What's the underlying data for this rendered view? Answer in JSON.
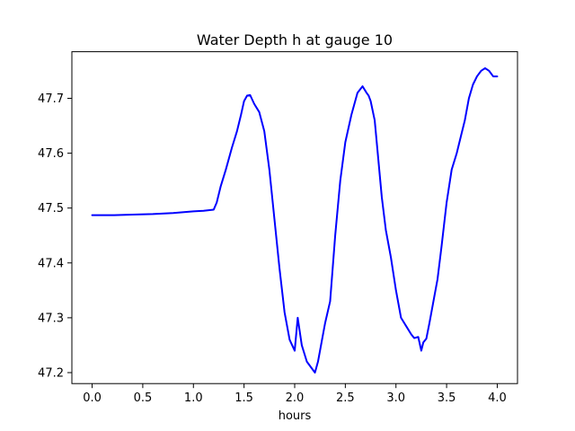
{
  "chart_data": {
    "type": "line",
    "title": "Water Depth h at gauge 10",
    "xlabel": "hours",
    "ylabel": "",
    "xlim": [
      -0.2,
      4.2
    ],
    "ylim": [
      47.18,
      47.785
    ],
    "xticks": [
      0.0,
      0.5,
      1.0,
      1.5,
      2.0,
      2.5,
      3.0,
      3.5,
      4.0
    ],
    "xtick_labels": [
      "0.0",
      "0.5",
      "1.0",
      "1.5",
      "2.0",
      "2.5",
      "3.0",
      "3.5",
      "4.0"
    ],
    "yticks": [
      47.2,
      47.3,
      47.4,
      47.5,
      47.6,
      47.7
    ],
    "ytick_labels": [
      "47.2",
      "47.3",
      "47.4",
      "47.5",
      "47.6",
      "47.7"
    ],
    "grid": false,
    "series": [
      {
        "color": "#0000ff",
        "x": [
          0.0,
          0.2,
          0.4,
          0.6,
          0.8,
          1.0,
          1.1,
          1.2,
          1.23,
          1.27,
          1.32,
          1.38,
          1.43,
          1.47,
          1.5,
          1.53,
          1.56,
          1.6,
          1.65,
          1.7,
          1.75,
          1.8,
          1.85,
          1.9,
          1.95,
          2.0,
          2.03,
          2.07,
          2.12,
          2.16,
          2.2,
          2.23,
          2.27,
          2.3,
          2.35,
          2.4,
          2.45,
          2.5,
          2.56,
          2.62,
          2.67,
          2.71,
          2.73,
          2.75,
          2.79,
          2.82,
          2.86,
          2.9,
          2.95,
          3.0,
          3.05,
          3.1,
          3.15,
          3.18,
          3.22,
          3.25,
          3.27,
          3.3,
          3.33,
          3.35,
          3.38,
          3.41,
          3.45,
          3.5,
          3.55,
          3.6,
          3.64,
          3.68,
          3.72,
          3.76,
          3.8,
          3.84,
          3.88,
          3.92,
          3.96,
          4.0
        ],
        "y": [
          47.487,
          47.487,
          47.488,
          47.489,
          47.491,
          47.494,
          47.495,
          47.497,
          47.51,
          47.54,
          47.57,
          47.61,
          47.64,
          47.67,
          47.695,
          47.705,
          47.706,
          47.69,
          47.675,
          47.64,
          47.57,
          47.48,
          47.39,
          47.31,
          47.26,
          47.24,
          47.3,
          47.25,
          47.22,
          47.21,
          47.2,
          47.22,
          47.26,
          47.29,
          47.33,
          47.45,
          47.55,
          47.62,
          47.67,
          47.71,
          47.722,
          47.71,
          47.705,
          47.695,
          47.66,
          47.6,
          47.52,
          47.46,
          47.41,
          47.35,
          47.3,
          47.285,
          47.27,
          47.263,
          47.265,
          47.24,
          47.255,
          47.262,
          47.29,
          47.31,
          47.34,
          47.37,
          47.43,
          47.51,
          47.57,
          47.6,
          47.63,
          47.66,
          47.7,
          47.725,
          47.74,
          47.75,
          47.755,
          47.75,
          47.74,
          47.74
        ]
      }
    ]
  }
}
